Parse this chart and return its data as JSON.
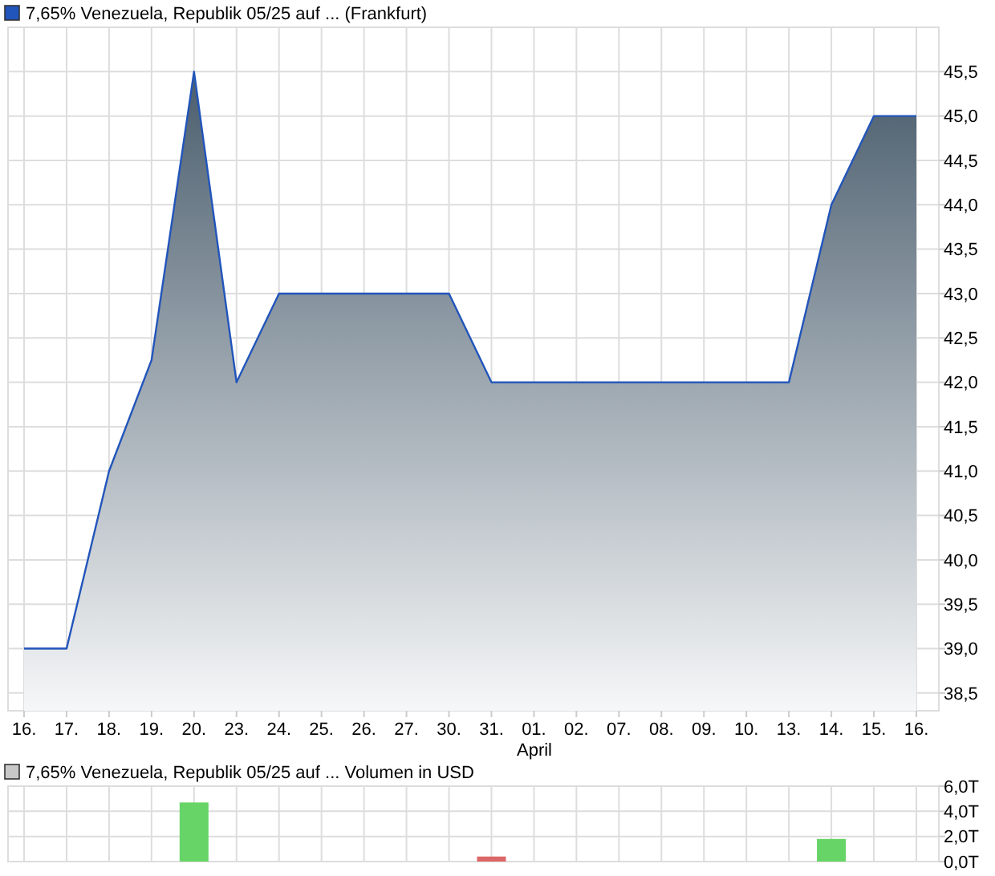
{
  "chart_data": [
    {
      "type": "area",
      "categories": [
        "16.",
        "17.",
        "18.",
        "19.",
        "20.",
        "23.",
        "24.",
        "25.",
        "26.",
        "27.",
        "30.",
        "31.",
        "01.",
        "02.",
        "07.",
        "08.",
        "09.",
        "10.",
        "13.",
        "14.",
        "15.",
        "16."
      ],
      "xlabel": "April",
      "series": [
        {
          "name": "7,65% Venezuela, Republik 05/25 auf ... (Frankfurt)",
          "color": "#2255bb",
          "values": [
            39,
            39,
            41,
            42.25,
            45.5,
            42,
            43,
            43,
            43,
            43,
            43,
            42,
            42,
            42,
            42,
            42,
            42,
            42,
            42,
            44,
            45,
            45
          ]
        }
      ],
      "ylim": [
        38.3,
        46.0
      ],
      "yticks": [
        {
          "value": 38.5,
          "label": "38,5"
        },
        {
          "value": 39,
          "label": "39,0"
        },
        {
          "value": 39.5,
          "label": "39,5"
        },
        {
          "value": 40,
          "label": "40,0"
        },
        {
          "value": 40.5,
          "label": "40,5"
        },
        {
          "value": 41,
          "label": "41,0"
        },
        {
          "value": 41.5,
          "label": "41,5"
        },
        {
          "value": 42,
          "label": "42,0"
        },
        {
          "value": 42.5,
          "label": "42,5"
        },
        {
          "value": 43,
          "label": "43,0"
        },
        {
          "value": 43.5,
          "label": "43,5"
        },
        {
          "value": 44,
          "label": "44,0"
        },
        {
          "value": 44.5,
          "label": "44,5"
        },
        {
          "value": 45,
          "label": "45,0"
        },
        {
          "value": 45.5,
          "label": "45,5"
        }
      ],
      "grid": true,
      "legend": "top left"
    },
    {
      "type": "bar",
      "categories": [
        "16.",
        "17.",
        "18.",
        "19.",
        "20.",
        "23.",
        "24.",
        "25.",
        "26.",
        "27.",
        "30.",
        "31.",
        "01.",
        "02.",
        "07.",
        "08.",
        "09.",
        "10.",
        "13.",
        "14.",
        "15.",
        "16."
      ],
      "series": [
        {
          "name": "7,65% Venezuela, Republik 05/25 auf ... Volumen in USD",
          "color": "#c8c8c8",
          "values": [
            null,
            null,
            null,
            null,
            4.7,
            null,
            null,
            null,
            null,
            null,
            null,
            0.4,
            null,
            null,
            null,
            null,
            null,
            null,
            null,
            1.8,
            null,
            null
          ],
          "colors": [
            null,
            null,
            null,
            null,
            "#66d466",
            null,
            null,
            null,
            null,
            null,
            null,
            "#dd6666",
            null,
            null,
            null,
            null,
            null,
            null,
            null,
            "#66d466",
            null,
            null
          ]
        }
      ],
      "ylim": [
        0,
        6
      ],
      "yticks": [
        {
          "value": 0,
          "label": "0,0T"
        },
        {
          "value": 2,
          "label": "2,0T"
        },
        {
          "value": 4,
          "label": "4,0T"
        },
        {
          "value": 6,
          "label": "6,0T"
        }
      ],
      "grid": true,
      "legend": "top left",
      "tick_labels": "y"
    }
  ]
}
